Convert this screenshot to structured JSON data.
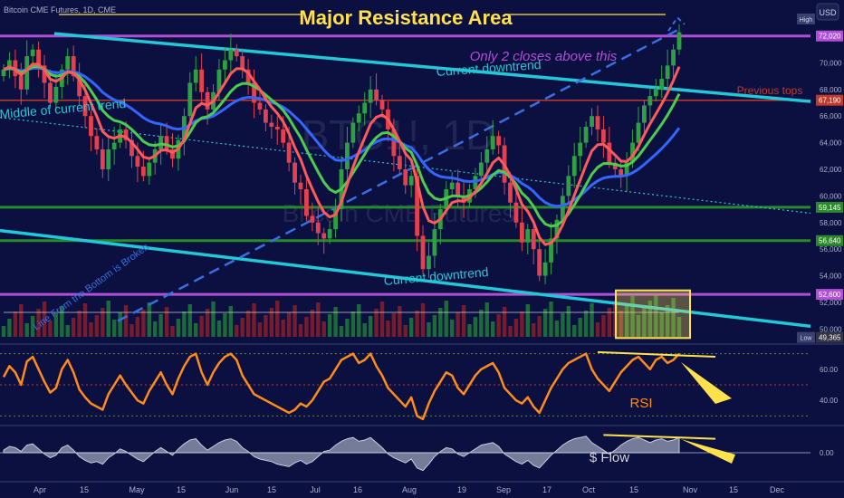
{
  "instrument_label": "Bitcoin CME Futures, 1D, CME",
  "currency_badge": "USD",
  "high_badge": "High",
  "low_badge": "Low",
  "watermark_symbol": "BTC1!, 1D",
  "watermark_name": "Bitcoin CME Futures",
  "colors": {
    "background": "#0b1040",
    "ema_fast": "#ff5a5a",
    "ema_mid": "#4ccc4c",
    "ema_slow": "#3366ff",
    "trendline": "#22c8d8",
    "resistance": "#b04fd6",
    "support": "#2a8a2a",
    "rsi": "#ff8c1a",
    "annotation": "#ffe14d"
  },
  "chart_data": [
    {
      "type": "candlestick",
      "x_ticks": [
        "Apr",
        "15",
        "May",
        "15",
        "Jun",
        "15",
        "Jul",
        "16",
        "Aug",
        "19",
        "Sep",
        "17",
        "Oct",
        "15",
        "Nov",
        "15",
        "Dec"
      ],
      "y_ticks": [
        50000,
        52000,
        54000,
        56000,
        58000,
        60000,
        62000,
        64000,
        66000,
        68000,
        70000,
        72000
      ],
      "ylim": [
        49000,
        73500
      ],
      "price_labels": [
        {
          "text": "72,020",
          "value": 72020,
          "color": "#b04fd6"
        },
        {
          "text": "67,190",
          "value": 67190,
          "color": "#c0392b"
        },
        {
          "text": "59,145",
          "value": 59145,
          "color": "#2a8a2a"
        },
        {
          "text": "56,640",
          "value": 56640,
          "color": "#2a8a2a"
        },
        {
          "text": "52,600",
          "value": 52600,
          "color": "#b04fd6"
        },
        {
          "text": "49,365",
          "value": 49365,
          "color": "#334"
        }
      ],
      "series": [
        {
          "name": "Price",
          "closes": [
            69500,
            70200,
            69000,
            68000,
            70500,
            71000,
            69800,
            68500,
            67000,
            68200,
            69500,
            70500,
            69000,
            67500,
            66000,
            64500,
            63500,
            62000,
            63500,
            64000,
            65000,
            64200,
            63000,
            62200,
            61500,
            62500,
            63500,
            64500,
            63500,
            62800,
            64200,
            66000,
            68500,
            69500,
            67800,
            66500,
            67800,
            69500,
            70200,
            71000,
            70500,
            69500,
            68500,
            67000,
            66500,
            65500,
            65200,
            65000,
            64000,
            62500,
            61000,
            60500,
            58500,
            58000,
            57200,
            56800,
            57500,
            59000,
            62000,
            64000,
            65500,
            66200,
            67000,
            68000,
            67200,
            66500,
            65000,
            63000,
            62000,
            60800,
            61500,
            57000,
            54500,
            55500,
            57500,
            59000,
            60500,
            61000,
            60000,
            59500,
            60500,
            61500,
            62500,
            63500,
            64500,
            63800,
            61000,
            59500,
            58000,
            56500,
            57500,
            56000,
            54000,
            55000,
            56800,
            58200,
            60000,
            61500,
            63000,
            64000,
            65200,
            66000,
            65000,
            64000,
            62500,
            62000,
            61500,
            62500,
            64000,
            65500,
            66800,
            67500,
            68000,
            68800,
            69800,
            71000,
            72300
          ]
        }
      ],
      "horizontal_levels": [
        {
          "label": "Major Resistance Area",
          "value": 72020
        },
        {
          "label": "Previous tops",
          "value": 67190
        },
        {
          "value": 59145
        },
        {
          "value": 56640
        },
        {
          "value": 52600
        }
      ],
      "annotations": [
        "Major Resistance Area",
        "Only 2 closes above this",
        "Current downtrend",
        "Current downtrend",
        "Previous tops",
        "Middle of current trend",
        "Line From the Bottom is Broken"
      ]
    },
    {
      "type": "line",
      "ylabel": "RSI",
      "label": "RSI",
      "y_ticks": [
        40,
        60
      ],
      "ylim": [
        25,
        75
      ],
      "series": [
        {
          "name": "RSI",
          "values": [
            55,
            62,
            58,
            50,
            65,
            68,
            60,
            52,
            45,
            48,
            60,
            66,
            58,
            47,
            42,
            38,
            36,
            34,
            44,
            50,
            56,
            50,
            45,
            40,
            38,
            46,
            52,
            58,
            50,
            44,
            54,
            62,
            68,
            70,
            58,
            50,
            58,
            64,
            68,
            70,
            66,
            56,
            50,
            44,
            42,
            40,
            38,
            36,
            34,
            32,
            34,
            38,
            36,
            40,
            46,
            52,
            54,
            60,
            66,
            68,
            70,
            64,
            66,
            70,
            62,
            56,
            48,
            44,
            40,
            36,
            42,
            30,
            28,
            38,
            46,
            52,
            58,
            56,
            48,
            44,
            50,
            56,
            60,
            62,
            64,
            58,
            48,
            44,
            40,
            38,
            42,
            36,
            32,
            40,
            48,
            54,
            60,
            64,
            66,
            68,
            70,
            60,
            54,
            50,
            46,
            52,
            58,
            62,
            66,
            68,
            64,
            60,
            66,
            68,
            64,
            66,
            70
          ]
        }
      ]
    },
    {
      "type": "area",
      "label": "$ Flow",
      "y_ticks": [
        0
      ],
      "ylim": [
        -1,
        1
      ],
      "series": [
        {
          "name": "$ Flow",
          "values": [
            0.1,
            0.25,
            0.2,
            0.05,
            0.3,
            0.35,
            0.15,
            -0.05,
            -0.2,
            -0.1,
            0.2,
            0.3,
            0.1,
            -0.15,
            -0.3,
            -0.4,
            -0.35,
            -0.45,
            -0.2,
            -0.05,
            0.15,
            0.05,
            -0.1,
            -0.25,
            -0.35,
            -0.15,
            0.05,
            0.2,
            0.05,
            -0.1,
            0.15,
            0.35,
            0.5,
            0.55,
            0.3,
            0.1,
            0.25,
            0.4,
            0.5,
            0.55,
            0.45,
            0.2,
            0.05,
            -0.15,
            -0.25,
            -0.3,
            -0.35,
            -0.45,
            -0.5,
            -0.55,
            -0.4,
            -0.3,
            -0.45,
            -0.35,
            -0.15,
            0.05,
            0.1,
            0.3,
            0.45,
            0.55,
            0.6,
            0.45,
            0.5,
            0.6,
            0.4,
            0.2,
            -0.05,
            -0.2,
            -0.3,
            -0.4,
            -0.25,
            -0.6,
            -0.7,
            -0.45,
            -0.15,
            0.05,
            0.2,
            0.15,
            -0.05,
            -0.15,
            0.0,
            0.15,
            0.3,
            0.35,
            0.4,
            0.25,
            -0.05,
            -0.2,
            -0.35,
            -0.45,
            -0.3,
            -0.5,
            -0.6,
            -0.35,
            -0.1,
            0.1,
            0.3,
            0.45,
            0.55,
            0.6,
            0.65,
            0.4,
            0.25,
            0.1,
            -0.05,
            0.1,
            0.3,
            0.45,
            0.55,
            0.6,
            0.5,
            0.4,
            0.5,
            0.55,
            0.45,
            0.5,
            0.6
          ]
        }
      ]
    }
  ]
}
